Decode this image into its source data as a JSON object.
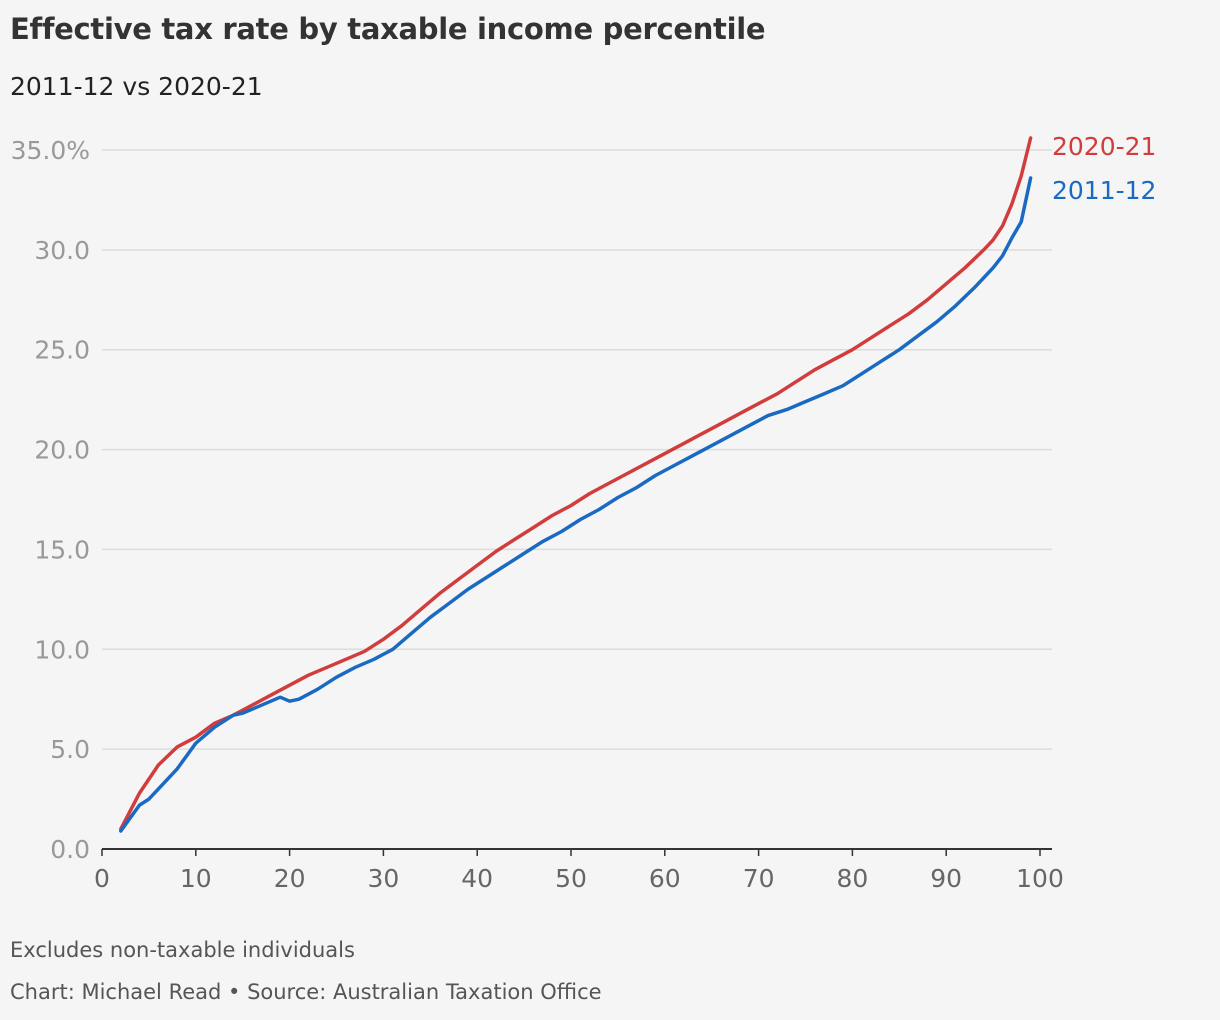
{
  "header": {
    "title": "Effective tax rate by taxable income percentile",
    "subtitle": "2011-12 vs 2020-21"
  },
  "footer": {
    "note": "Excludes non-taxable individuals",
    "credit": "Chart: Michael Read • Source: Australian Taxation Office"
  },
  "colors": {
    "series_2020_21": "#d13c3c",
    "series_2011_12": "#1a6ac2",
    "grid": "#dcdcdc",
    "axis": "#333333"
  },
  "chart_data": {
    "type": "line",
    "title": "Effective tax rate by taxable income percentile",
    "subtitle": "2011-12 vs 2020-21",
    "xlabel": "",
    "ylabel": "",
    "xlim": [
      0,
      100
    ],
    "ylim": [
      0,
      35
    ],
    "x_ticks": [
      0,
      10,
      20,
      30,
      40,
      50,
      60,
      70,
      80,
      90,
      100
    ],
    "x_tick_labels": [
      "0",
      "10",
      "20",
      "30",
      "40",
      "50",
      "60",
      "70",
      "80",
      "90",
      "100"
    ],
    "y_ticks": [
      0,
      5,
      10,
      15,
      20,
      25,
      30,
      35
    ],
    "y_tick_labels": [
      "0.0",
      "5.0",
      "10.0",
      "15.0",
      "20.0",
      "25.0",
      "30.0",
      "35.0%"
    ],
    "grid": true,
    "legend": "direct labels at line ends",
    "series": [
      {
        "name": "2020-21",
        "color": "#d13c3c",
        "x": [
          2,
          4,
          6,
          8,
          10,
          12,
          14,
          16,
          18,
          20,
          22,
          24,
          26,
          28,
          30,
          32,
          34,
          36,
          38,
          40,
          42,
          44,
          46,
          48,
          50,
          52,
          54,
          56,
          58,
          60,
          62,
          64,
          66,
          68,
          70,
          72,
          74,
          76,
          78,
          80,
          82,
          84,
          86,
          88,
          90,
          92,
          94,
          95,
          96,
          97,
          98,
          99
        ],
        "values": [
          1.0,
          2.8,
          4.2,
          5.1,
          5.6,
          6.3,
          6.7,
          7.2,
          7.7,
          8.2,
          8.7,
          9.1,
          9.5,
          9.9,
          10.5,
          11.2,
          12.0,
          12.8,
          13.5,
          14.2,
          14.9,
          15.5,
          16.1,
          16.7,
          17.2,
          17.8,
          18.3,
          18.8,
          19.3,
          19.8,
          20.3,
          20.8,
          21.3,
          21.8,
          22.3,
          22.8,
          23.4,
          24.0,
          24.5,
          25.0,
          25.6,
          26.2,
          26.8,
          27.5,
          28.3,
          29.1,
          30.0,
          30.5,
          31.2,
          32.3,
          33.7,
          35.6
        ]
      },
      {
        "name": "2011-12",
        "color": "#1a6ac2",
        "x": [
          2,
          4,
          5,
          6,
          8,
          10,
          12,
          14,
          15,
          17,
          19,
          20,
          21,
          23,
          25,
          27,
          29,
          31,
          33,
          35,
          37,
          39,
          41,
          43,
          45,
          47,
          49,
          51,
          53,
          55,
          57,
          59,
          61,
          63,
          65,
          67,
          69,
          71,
          73,
          75,
          77,
          79,
          81,
          83,
          85,
          87,
          89,
          91,
          93,
          95,
          96,
          97,
          98,
          99
        ],
        "values": [
          0.9,
          2.2,
          2.5,
          3.0,
          4.0,
          5.3,
          6.1,
          6.7,
          6.8,
          7.2,
          7.6,
          7.4,
          7.5,
          8.0,
          8.6,
          9.1,
          9.5,
          10.0,
          10.8,
          11.6,
          12.3,
          13.0,
          13.6,
          14.2,
          14.8,
          15.4,
          15.9,
          16.5,
          17.0,
          17.6,
          18.1,
          18.7,
          19.2,
          19.7,
          20.2,
          20.7,
          21.2,
          21.7,
          22.0,
          22.4,
          22.8,
          23.2,
          23.8,
          24.4,
          25.0,
          25.7,
          26.4,
          27.2,
          28.1,
          29.1,
          29.7,
          30.6,
          31.4,
          33.6
        ]
      }
    ]
  }
}
